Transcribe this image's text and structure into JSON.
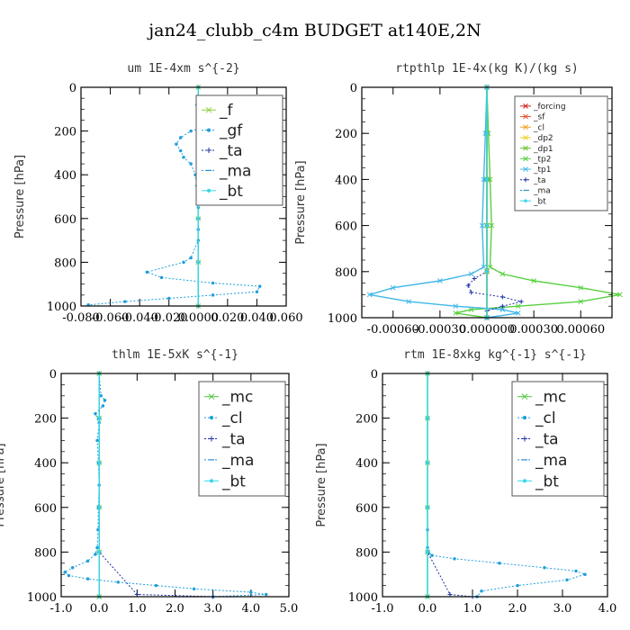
{
  "title": "jan24_clubb_c4m  BUDGET at140E,2N",
  "chart_data": [
    {
      "type": "line",
      "title": "um   1E-4xm s^{-2}",
      "ylabel": "Pressure [hPa]",
      "xlim": [
        -0.08,
        0.06
      ],
      "ylim": [
        1000,
        0
      ],
      "xticks": [
        -0.08,
        -0.06,
        -0.04,
        -0.02,
        0.0,
        0.02,
        0.04,
        0.06
      ],
      "xtick_labels": [
        "-0.080",
        "-0.060",
        "-0.040",
        "-0.020",
        "0.0000",
        "0.020",
        "0.040",
        "0.060"
      ],
      "yticks": [
        0,
        200,
        400,
        600,
        800,
        1000
      ],
      "ytick_labels": [
        "0",
        "200",
        "400",
        "600",
        "800",
        "1000"
      ],
      "legend_position": "upper-right",
      "legend_size": "large",
      "series": [
        {
          "name": "_f",
          "color": "#8ccf3a",
          "marker": "x",
          "dash": false,
          "x": [
            0.0,
            0.0,
            0.0,
            0.0,
            0.0,
            0.0
          ],
          "y": [
            0,
            200,
            400,
            600,
            800,
            1000
          ]
        },
        {
          "name": "_gf",
          "color": "#1f9fdc",
          "marker": "dot",
          "dash": true,
          "x": [
            0.0,
            0.0,
            -0.001,
            0.001,
            0.022,
            0.021,
            0.008,
            -0.005,
            -0.012,
            -0.015,
            -0.012,
            -0.01,
            -0.005,
            -0.002,
            -0.001,
            0.0,
            0.0,
            0.0,
            0.0,
            0.0,
            -0.005,
            -0.01,
            -0.035,
            -0.025,
            0.01,
            0.042,
            0.04,
            0.01,
            -0.02,
            -0.05,
            -0.075
          ],
          "y": [
            0,
            50,
            80,
            100,
            120,
            140,
            175,
            200,
            230,
            260,
            290,
            320,
            350,
            400,
            450,
            500,
            550,
            600,
            650,
            700,
            780,
            800,
            845,
            870,
            895,
            910,
            935,
            950,
            965,
            980,
            995
          ]
        },
        {
          "name": "_ta",
          "color": "#1e2fa6",
          "marker": "+",
          "dash": true,
          "x": [
            0.0,
            0.0,
            0.0,
            0.0,
            0.0,
            0.0
          ],
          "y": [
            0,
            200,
            400,
            600,
            800,
            1000
          ]
        },
        {
          "name": "_ma",
          "color": "#2a8fd0",
          "marker": "dash",
          "dash": true,
          "x": [
            0.0,
            0.0,
            0.0,
            0.0,
            0.0,
            0.0
          ],
          "y": [
            0,
            200,
            400,
            600,
            800,
            1000
          ]
        },
        {
          "name": "_bt",
          "color": "#35d6e6",
          "marker": "dot",
          "dash": false,
          "x": [
            0.0,
            0.0,
            0.0,
            0.0,
            0.0,
            0.0
          ],
          "y": [
            0,
            200,
            400,
            600,
            800,
            1000
          ]
        }
      ]
    },
    {
      "type": "line",
      "title": "rtpthlp   1E-4x(kg K)/(kg s)",
      "ylabel": "Pressure [hPa]",
      "xlim": [
        -0.0008,
        0.0008
      ],
      "ylim": [
        1000,
        0
      ],
      "xticks": [
        -0.0006,
        -0.0003,
        0.0,
        0.0003,
        0.0006
      ],
      "xtick_labels": [
        "-0.00060",
        "-0.00030",
        "0.000000",
        "0.00030",
        "0.00060"
      ],
      "yticks": [
        0,
        200,
        400,
        600,
        800,
        1000
      ],
      "ytick_labels": [
        "0",
        "200",
        "400",
        "600",
        "800",
        "1000"
      ],
      "legend_position": "upper-right",
      "legend_size": "small",
      "series": [
        {
          "name": "_forcing",
          "color": "#d42020",
          "marker": "x",
          "dash": false,
          "x": [
            0.0,
            0.0,
            0.0,
            0.0,
            0.0,
            0.0
          ],
          "y": [
            0,
            200,
            400,
            600,
            800,
            1000
          ]
        },
        {
          "name": "_sf",
          "color": "#e05030",
          "marker": "x",
          "dash": false,
          "x": [
            0.0,
            0.0,
            0.0,
            0.0,
            0.0,
            0.0
          ],
          "y": [
            0,
            200,
            400,
            600,
            800,
            1000
          ]
        },
        {
          "name": "_cl",
          "color": "#f0a020",
          "marker": "x",
          "dash": false,
          "x": [
            0.0,
            0.0,
            0.0,
            0.0,
            0.0,
            0.0
          ],
          "y": [
            0,
            200,
            400,
            600,
            800,
            1000
          ]
        },
        {
          "name": "_dp2",
          "color": "#e8d020",
          "marker": "x",
          "dash": false,
          "x": [
            0.0,
            0.0,
            0.0,
            0.0,
            0.0,
            0.0
          ],
          "y": [
            0,
            200,
            400,
            600,
            800,
            1000
          ]
        },
        {
          "name": "_dp1",
          "color": "#6ac02a",
          "marker": "x",
          "dash": false,
          "x": [
            0.0,
            0.0,
            0.0,
            0.0,
            0.0,
            0.0
          ],
          "y": [
            0,
            200,
            400,
            600,
            800,
            1000
          ]
        },
        {
          "name": "_tp2",
          "color": "#58d040",
          "marker": "x",
          "dash": false,
          "x": [
            0.0,
            1e-05,
            2e-05,
            3e-05,
            2e-05,
            0.0001,
            0.0003,
            0.0006,
            0.00085,
            0.0006,
            0.0002,
            -0.0001,
            -0.0002,
            0.0
          ],
          "y": [
            0,
            200,
            400,
            600,
            780,
            810,
            840,
            870,
            900,
            930,
            950,
            965,
            980,
            1000
          ]
        },
        {
          "name": "_tp1",
          "color": "#40b8e8",
          "marker": "x",
          "dash": false,
          "x": [
            0.0,
            -1e-05,
            -2e-05,
            -3e-05,
            -2e-05,
            -0.0001,
            -0.0003,
            -0.0006,
            -0.00075,
            -0.0005,
            -0.0002,
            0.0001,
            0.0002,
            0.0
          ],
          "y": [
            0,
            200,
            400,
            600,
            780,
            810,
            840,
            870,
            900,
            930,
            950,
            965,
            980,
            1000
          ]
        },
        {
          "name": "_ta",
          "color": "#1e2fa6",
          "marker": "+",
          "dash": true,
          "x": [
            0.0,
            0.0,
            0.0,
            0.0,
            0.0,
            -8e-05,
            -0.00012,
            -0.0001,
            0.0001,
            0.00022,
            0.0001,
            0.0,
            0.0
          ],
          "y": [
            0,
            200,
            400,
            600,
            800,
            830,
            860,
            890,
            910,
            930,
            950,
            970,
            1000
          ]
        },
        {
          "name": "_ma",
          "color": "#2a8fd0",
          "marker": "dash",
          "dash": true,
          "x": [
            0.0,
            0.0,
            0.0,
            0.0,
            0.0,
            0.0
          ],
          "y": [
            0,
            200,
            400,
            600,
            800,
            1000
          ]
        },
        {
          "name": "_bt",
          "color": "#35d6e6",
          "marker": "dot",
          "dash": false,
          "x": [
            0.0,
            0.0,
            0.0,
            0.0,
            0.0,
            0.0
          ],
          "y": [
            0,
            200,
            400,
            600,
            800,
            1000
          ]
        }
      ]
    },
    {
      "type": "line",
      "title": "thlm   1E-5xK s^{-1}",
      "ylabel": "Pressure [hPa]",
      "xlim": [
        -1.0,
        5.0
      ],
      "ylim": [
        1000,
        0
      ],
      "xticks": [
        -1.0,
        0.0,
        1.0,
        2.0,
        3.0,
        4.0,
        5.0
      ],
      "xtick_labels": [
        "-1.0",
        "0.0",
        "1.0",
        "2.0",
        "3.0",
        "4.0",
        "5.0"
      ],
      "yticks": [
        0,
        200,
        400,
        600,
        800,
        1000
      ],
      "ytick_labels": [
        "0",
        "200",
        "400",
        "600",
        "800",
        "1000"
      ],
      "legend_position": "upper-right",
      "legend_size": "large",
      "series": [
        {
          "name": "_mc",
          "color": "#4cc83c",
          "marker": "x",
          "dash": false,
          "x": [
            0.0,
            0.0,
            0.0,
            0.0,
            0.0,
            0.0
          ],
          "y": [
            0,
            200,
            400,
            600,
            800,
            1000
          ]
        },
        {
          "name": "_cl",
          "color": "#1f9fdc",
          "marker": "dot",
          "dash": true,
          "x": [
            0.0,
            0.05,
            0.15,
            0.1,
            -0.1,
            0.0,
            -0.05,
            -0.02,
            0.0,
            -0.02,
            -0.03,
            -0.05,
            -0.1,
            -0.3,
            -0.7,
            -0.9,
            -0.8,
            -0.3,
            0.5,
            1.5,
            2.5,
            4.0,
            4.4,
            3.0
          ],
          "y": [
            0,
            100,
            120,
            145,
            180,
            220,
            300,
            400,
            500,
            600,
            700,
            780,
            810,
            840,
            870,
            890,
            905,
            920,
            935,
            950,
            965,
            980,
            990,
            1000
          ]
        },
        {
          "name": "_ta",
          "color": "#1e2fa6",
          "marker": "+",
          "dash": true,
          "x": [
            0.0,
            0.0,
            0.0,
            0.0,
            0.0,
            1.0,
            3.0
          ],
          "y": [
            0,
            200,
            400,
            600,
            800,
            990,
            1000
          ]
        },
        {
          "name": "_ma",
          "color": "#2a8fd0",
          "marker": "dash",
          "dash": true,
          "x": [
            0.0,
            0.0,
            0.0,
            0.0,
            0.0,
            0.0
          ],
          "y": [
            0,
            200,
            400,
            600,
            800,
            1000
          ]
        },
        {
          "name": "_bt",
          "color": "#35d6e6",
          "marker": "dot",
          "dash": false,
          "x": [
            0.0,
            0.0,
            0.0,
            0.0,
            0.0,
            0.0
          ],
          "y": [
            0,
            200,
            400,
            600,
            800,
            1000
          ]
        }
      ]
    },
    {
      "type": "line",
      "title": "rtm   1E-8xkg kg^{-1} s^{-1}",
      "ylabel": "Pressure [hPa]",
      "xlim": [
        -1.0,
        4.0
      ],
      "ylim": [
        1000,
        0
      ],
      "xticks": [
        -1.0,
        0.0,
        1.0,
        2.0,
        3.0,
        4.0
      ],
      "xtick_labels": [
        "-1.0",
        "0.0",
        "1.0",
        "2.0",
        "3.0",
        "4.0"
      ],
      "yticks": [
        0,
        200,
        400,
        600,
        800,
        1000
      ],
      "ytick_labels": [
        "0",
        "200",
        "400",
        "600",
        "800",
        "1000"
      ],
      "legend_position": "upper-right",
      "legend_size": "large",
      "series": [
        {
          "name": "_mc",
          "color": "#4cc83c",
          "marker": "x",
          "dash": false,
          "x": [
            0.0,
            0.0,
            0.0,
            0.0,
            0.0,
            0.0
          ],
          "y": [
            0,
            200,
            400,
            600,
            800,
            1000
          ]
        },
        {
          "name": "_cl",
          "color": "#1f9fdc",
          "marker": "dot",
          "dash": true,
          "x": [
            0.0,
            0.0,
            0.0,
            0.0,
            0.0,
            0.0,
            0.02,
            0.1,
            0.6,
            1.6,
            2.6,
            3.3,
            3.5,
            3.1,
            2.0,
            1.2,
            1.1
          ],
          "y": [
            0,
            200,
            400,
            600,
            700,
            780,
            800,
            815,
            830,
            850,
            870,
            885,
            900,
            925,
            950,
            975,
            1000
          ]
        },
        {
          "name": "_ta",
          "color": "#1e2fa6",
          "marker": "+",
          "dash": true,
          "x": [
            0.0,
            0.0,
            0.0,
            0.0,
            0.0,
            0.5,
            1.0
          ],
          "y": [
            0,
            200,
            400,
            600,
            800,
            990,
            1000
          ]
        },
        {
          "name": "_ma",
          "color": "#2a8fd0",
          "marker": "dash",
          "dash": true,
          "x": [
            0.0,
            0.0,
            0.0,
            0.0,
            0.0,
            0.0
          ],
          "y": [
            0,
            200,
            400,
            600,
            800,
            1000
          ]
        },
        {
          "name": "_bt",
          "color": "#35d6e6",
          "marker": "dot",
          "dash": false,
          "x": [
            0.0,
            0.0,
            0.0,
            0.0,
            0.0,
            0.0
          ],
          "y": [
            0,
            200,
            400,
            600,
            800,
            1000
          ]
        }
      ]
    }
  ]
}
